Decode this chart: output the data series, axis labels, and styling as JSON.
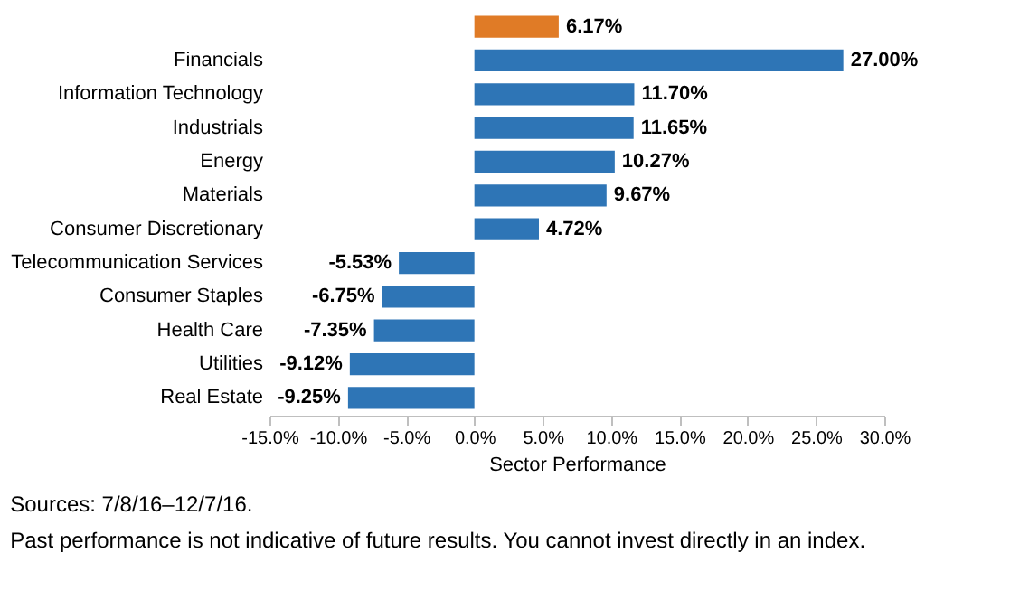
{
  "chart_data": {
    "type": "bar",
    "orientation": "horizontal",
    "categories": [
      null,
      "Financials",
      "Information Technology",
      "Industrials",
      "Energy",
      "Materials",
      "Consumer Discretionary",
      "Telecommunication Services",
      "Consumer Staples",
      "Health Care",
      "Utilities",
      "Real Estate"
    ],
    "values": [
      6.17,
      27.0,
      11.7,
      11.65,
      10.27,
      9.67,
      4.72,
      -5.53,
      -6.75,
      -7.35,
      -9.12,
      -9.25
    ],
    "value_labels": [
      "6.17%",
      "27.00%",
      "11.70%",
      "11.65%",
      "10.27%",
      "9.67%",
      "4.72%",
      "-5.53%",
      "-6.75%",
      "-7.35%",
      "-9.12%",
      "-9.25%"
    ],
    "colors": [
      "#e07b26",
      "#2e75b6",
      "#2e75b6",
      "#2e75b6",
      "#2e75b6",
      "#2e75b6",
      "#2e75b6",
      "#2e75b6",
      "#2e75b6",
      "#2e75b6",
      "#2e75b6",
      "#2e75b6"
    ],
    "xlim": [
      -15,
      30
    ],
    "xticks": [
      {
        "value": -15,
        "label": "-15.0%"
      },
      {
        "value": -10,
        "label": "-10.0%"
      },
      {
        "value": -5,
        "label": "-5.0%"
      },
      {
        "value": 0,
        "label": "0.0%"
      },
      {
        "value": 5,
        "label": "5.0%"
      },
      {
        "value": 10,
        "label": "10.0%"
      },
      {
        "value": 15,
        "label": "15.0%"
      },
      {
        "value": 20,
        "label": "20.0%"
      },
      {
        "value": 25,
        "label": "25.0%"
      },
      {
        "value": 30,
        "label": "30.0%"
      }
    ],
    "xlabel": "Sector Performance",
    "grid": false,
    "annotations": [
      "Sources: 7/8/16–12/7/16.",
      "Past performance is not indicative of future results. You cannot invest directly in an index."
    ]
  }
}
